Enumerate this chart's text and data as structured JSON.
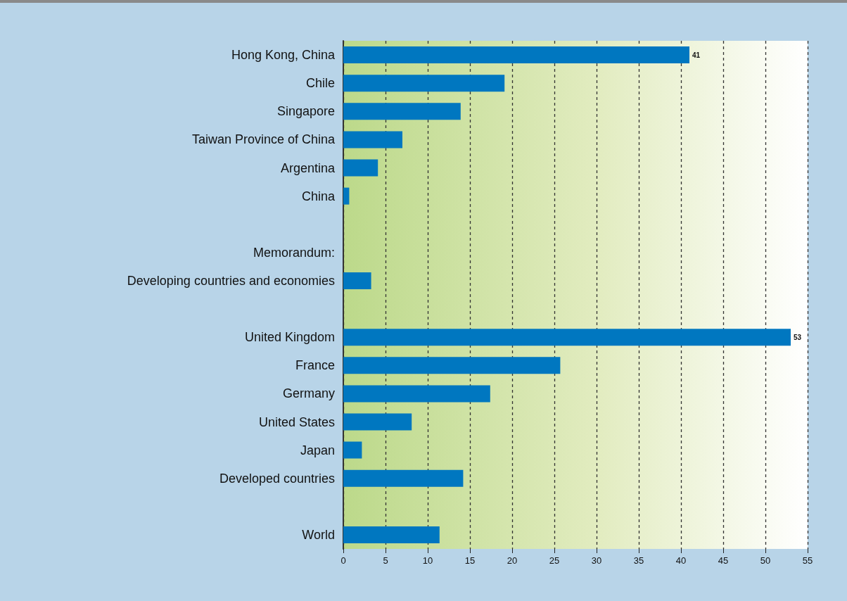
{
  "chart_data": {
    "type": "bar",
    "orientation": "horizontal",
    "categories": [
      "Hong Kong, China",
      "Chile",
      "Singapore",
      "Taiwan Province of China",
      "Argentina",
      "China",
      null,
      null,
      "Developing countries and economies",
      null,
      "United Kingdom",
      "France",
      "Germany",
      "United States",
      "Japan",
      "Developed countries",
      null,
      "World"
    ],
    "values": [
      41,
      19.1,
      13.9,
      7.0,
      4.1,
      0.7,
      null,
      null,
      3.3,
      null,
      53,
      25.7,
      17.4,
      8.1,
      2.2,
      14.2,
      null,
      11.4
    ],
    "value_labels": [
      "41",
      null,
      null,
      null,
      null,
      null,
      null,
      null,
      null,
      null,
      "53",
      null,
      null,
      null,
      null,
      null,
      null,
      null
    ],
    "color": "#0077c0",
    "xlim": [
      0,
      55
    ],
    "xticks": [
      0,
      5,
      10,
      15,
      20,
      25,
      30,
      35,
      40,
      45,
      50,
      55
    ],
    "grid": "x",
    "annotations": [
      "Memorandum:"
    ]
  }
}
